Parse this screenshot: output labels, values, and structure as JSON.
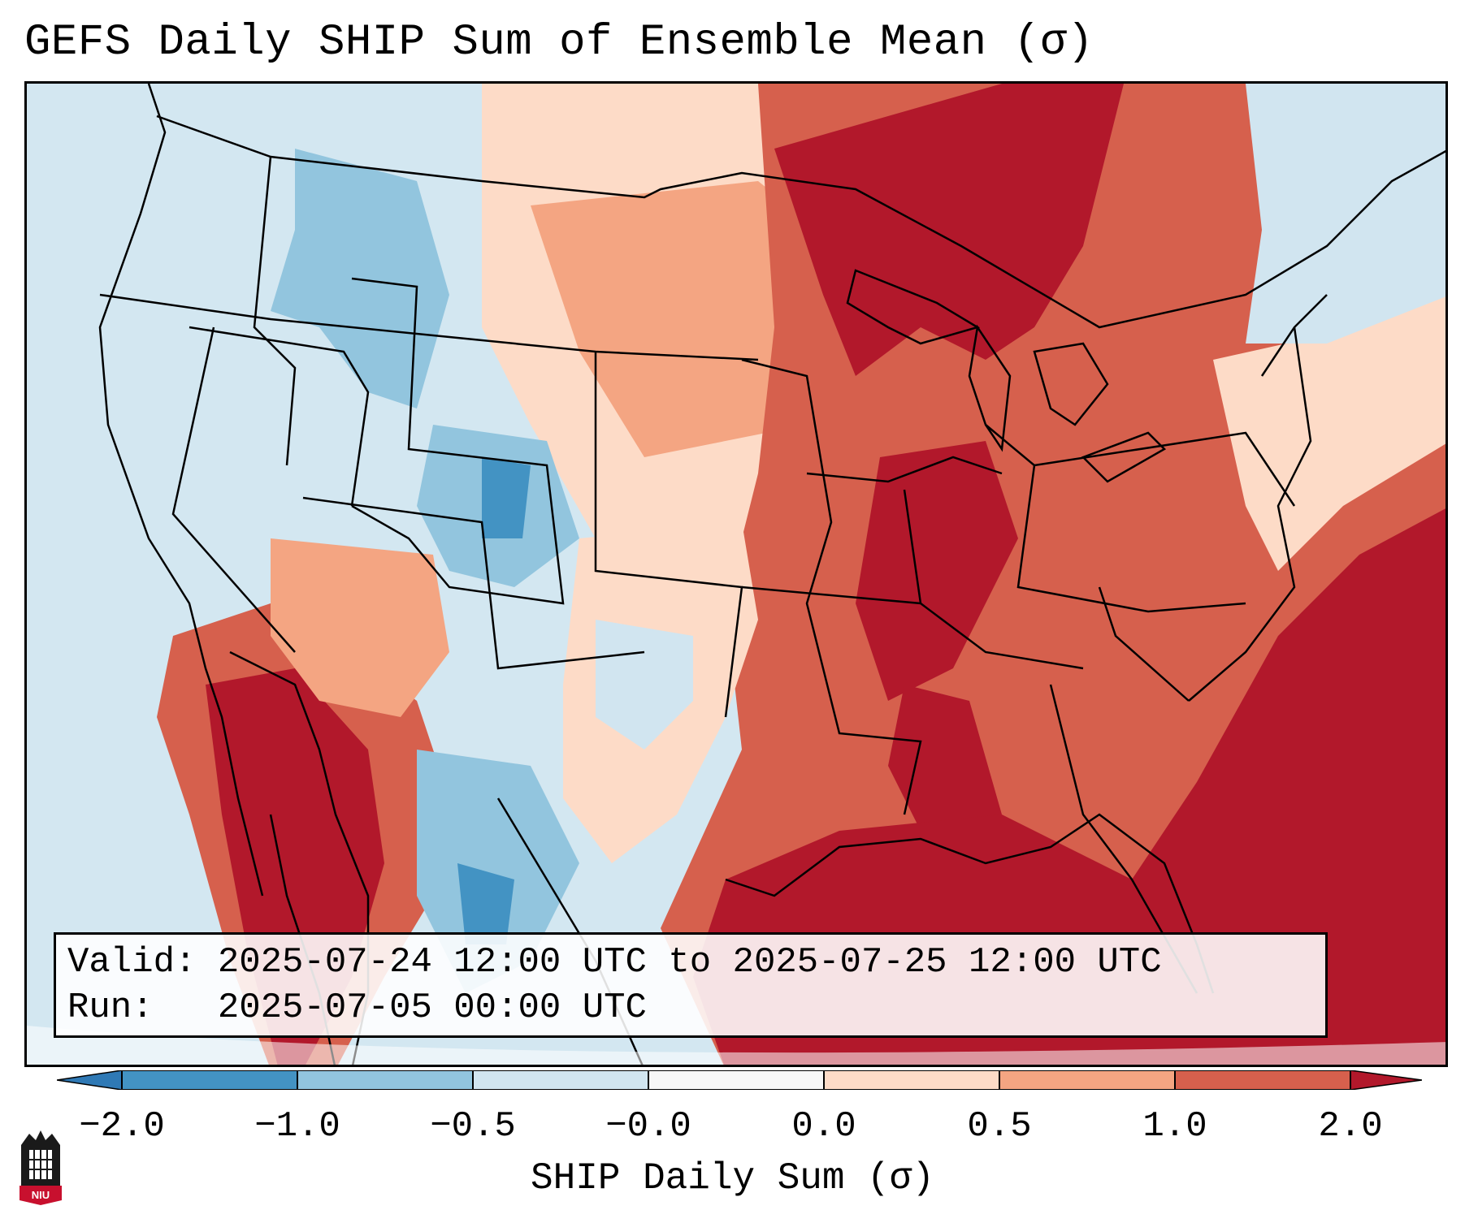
{
  "title": "GEFS Daily SHIP Sum of Ensemble Mean (σ)",
  "info": {
    "valid_line": "Valid: 2025-07-24 12:00 UTC to 2025-07-25 12:00 UTC",
    "run_line": "Run:   2025-07-05 00:00 UTC"
  },
  "colorbar": {
    "label": "SHIP Daily Sum (σ)",
    "ticks": [
      "−2.0",
      "−1.0",
      "−0.5",
      "−0.0",
      "0.0",
      "0.5",
      "1.0",
      "2.0"
    ],
    "colors": {
      "below": "#2f79b5",
      "n2_n1": "#4393c3",
      "n1_n05": "#92c5de",
      "n05_n0": "#d1e5f0",
      "zero": "#f7f7f7",
      "p0_p05": "#fddbc7",
      "p05_p1": "#f4a582",
      "p1_p2": "#d6604d",
      "above": "#b2182b"
    }
  },
  "logo": {
    "text": "NIU",
    "name": "niu-logo"
  }
}
